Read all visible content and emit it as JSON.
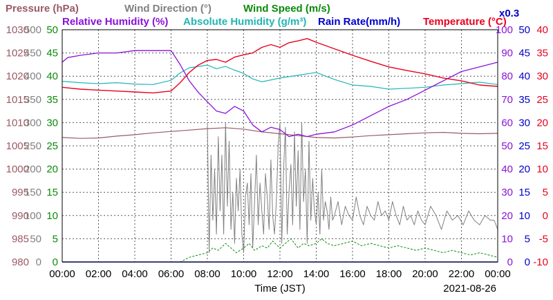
{
  "colors": {
    "pressure": "#9a5a64",
    "wind_direction": "#808080",
    "wind_speed": "#0a8a0a",
    "relative_humidity": "#8a12d8",
    "absolute_humidity": "#22b5b5",
    "rain_rate": "#0000cc",
    "temperature": "#e8001e"
  },
  "chart_data": {
    "type": "line",
    "legend": {
      "row1": [
        {
          "key": "pressure",
          "label": "Pressure (hPa)"
        },
        {
          "key": "wind_direction",
          "label": "Wind Direction (°)"
        },
        {
          "key": "wind_speed",
          "label": "Wind Speed (m/s)"
        }
      ],
      "row2": [
        {
          "key": "relative_humidity",
          "label": "Relative Humidity (%)"
        },
        {
          "key": "absolute_humidity",
          "label": "Absolute Humidity (g/m³)"
        },
        {
          "key": "rain_rate",
          "label": "Rain Rate(mm/h)"
        },
        {
          "key": "temperature",
          "label": "Temperature (°C)"
        }
      ],
      "rain_multiplier": "x0.3"
    },
    "xlabel": "Time (JST)",
    "date": "2021-08-26",
    "x_ticks": [
      "00:00",
      "02:00",
      "04:00",
      "06:00",
      "08:00",
      "10:00",
      "12:00",
      "14:00",
      "16:00",
      "18:00",
      "20:00",
      "22:00",
      "00:00"
    ],
    "x_range_hours": [
      0,
      24
    ],
    "grid": true,
    "axes": {
      "pressure": {
        "range": [
          980,
          1030
        ],
        "ticks": [
          "980",
          "985",
          "990",
          "995",
          "1000",
          "1005",
          "1010",
          "1015",
          "1020",
          "1025",
          "1030"
        ]
      },
      "wind_direction": {
        "range": [
          0,
          500
        ],
        "ticks": [
          "0",
          "50",
          "100",
          "150",
          "200",
          "250",
          "300",
          "350",
          "400",
          "450",
          "500"
        ]
      },
      "wind_speed": {
        "range": [
          0,
          50
        ],
        "ticks": [
          "0",
          "5",
          "10",
          "15",
          "20",
          "25",
          "30",
          "35",
          "40",
          "45",
          "50"
        ]
      },
      "relative_humidity": {
        "range": [
          0,
          100
        ],
        "ticks": [
          "0",
          "10",
          "20",
          "30",
          "40",
          "50",
          "60",
          "70",
          "80",
          "90",
          "100"
        ]
      },
      "rain_rate": {
        "range": [
          0,
          50
        ],
        "ticks": [
          "0",
          "5",
          "10",
          "15",
          "20",
          "25",
          "30",
          "35",
          "40",
          "45",
          "50"
        ]
      },
      "temperature": {
        "range": [
          -10,
          40
        ],
        "ticks": [
          "-10",
          "-5",
          "0",
          "5",
          "10",
          "15",
          "20",
          "25",
          "30",
          "35",
          "40"
        ]
      }
    },
    "series": [
      {
        "key": "pressure",
        "axis": "pressure",
        "x": [
          0,
          1,
          2,
          3,
          4,
          5,
          6,
          7,
          8,
          9,
          10,
          11,
          12,
          13,
          14,
          15,
          16,
          17,
          18,
          19,
          20,
          21,
          22,
          23,
          24
        ],
        "y": [
          1006.8,
          1006.6,
          1006.7,
          1007.1,
          1007.4,
          1007.8,
          1008.1,
          1008.4,
          1008.7,
          1008.9,
          1008.6,
          1008.0,
          1007.6,
          1007.2,
          1006.8,
          1006.7,
          1006.9,
          1007.2,
          1007.4,
          1007.6,
          1007.8,
          1007.9,
          1007.7,
          1007.6,
          1007.7
        ]
      },
      {
        "key": "absolute_humidity",
        "axis": "wind_speed",
        "x": [
          0,
          1,
          2,
          3,
          4,
          5,
          6,
          6.5,
          7,
          7.5,
          8,
          8.5,
          9,
          9.5,
          10,
          10.5,
          11,
          12,
          13,
          14,
          15,
          16,
          17,
          18,
          19,
          20,
          21,
          22,
          23,
          24
        ],
        "y": [
          38.9,
          38.6,
          38.4,
          38.6,
          38.3,
          38.2,
          39.1,
          40.7,
          41.8,
          42.1,
          42.4,
          41.6,
          42.1,
          41.3,
          40.6,
          39.4,
          38.8,
          39.6,
          40.2,
          40.8,
          39.3,
          38.1,
          37.8,
          37.2,
          37.4,
          37.6,
          38.1,
          38.4,
          38.7,
          38.2
        ]
      },
      {
        "key": "relative_humidity",
        "axis": "relative_humidity",
        "x": [
          0,
          0.3,
          1,
          2,
          3,
          4,
          5,
          6,
          6.5,
          7,
          7.5,
          8,
          8.5,
          9,
          9.5,
          10,
          10.5,
          11,
          11.5,
          12,
          12.5,
          13,
          13.5,
          14,
          15,
          16,
          17,
          18,
          19,
          20,
          21,
          22,
          23,
          24
        ],
        "y": [
          86,
          88,
          89,
          90,
          90,
          91,
          91,
          91,
          85,
          78,
          73,
          69,
          65,
          64,
          67,
          65,
          59,
          56,
          58,
          57,
          54,
          55,
          54,
          55,
          56,
          59,
          63,
          67,
          70,
          74,
          78,
          82,
          84,
          86
        ]
      },
      {
        "key": "temperature",
        "axis": "temperature",
        "x": [
          0,
          1,
          2,
          3,
          4,
          5,
          6,
          6.5,
          7,
          7.5,
          8,
          8.5,
          9,
          9.5,
          10,
          10.5,
          11,
          11.5,
          12,
          12.5,
          13,
          13.5,
          14,
          15,
          16,
          17,
          18,
          19,
          20,
          21,
          22,
          23,
          24
        ],
        "y": [
          27.6,
          27.2,
          27.0,
          26.8,
          26.6,
          26.4,
          26.8,
          28.6,
          30.8,
          32.4,
          33.4,
          33.6,
          33.0,
          34.1,
          34.6,
          35.0,
          36.2,
          36.8,
          36.2,
          37.2,
          37.6,
          38.1,
          37.3,
          35.9,
          34.5,
          33.2,
          32.0,
          31.2,
          30.5,
          29.6,
          29.0,
          28.1,
          27.8
        ]
      },
      {
        "key": "rain_rate",
        "axis": "rain_rate",
        "x": [
          0,
          24
        ],
        "y": [
          0,
          0
        ]
      },
      {
        "key": "wind_direction",
        "axis": "wind_direction",
        "x": [
          0,
          6.8,
          7.0,
          7.2,
          7.4,
          7.6,
          7.8,
          8.0,
          8.1,
          8.2,
          8.3,
          8.4,
          8.5,
          8.6,
          8.7,
          8.8,
          8.9,
          9.0,
          9.1,
          9.2,
          9.3,
          9.4,
          9.5,
          9.6,
          9.7,
          9.8,
          9.9,
          10.0,
          10.1,
          10.2,
          10.3,
          10.4,
          10.5,
          10.6,
          10.7,
          10.8,
          10.9,
          11.0,
          11.1,
          11.2,
          11.3,
          11.4,
          11.5,
          11.6,
          11.7,
          11.8,
          11.9,
          12.0,
          12.1,
          12.2,
          12.3,
          12.4,
          12.5,
          12.6,
          12.7,
          12.8,
          12.9,
          13.0,
          13.1,
          13.2,
          13.3,
          13.4,
          13.5,
          13.6,
          13.7,
          13.8,
          13.9,
          14.0,
          14.1,
          14.2,
          14.3,
          14.4,
          14.5,
          14.6,
          14.7,
          14.8,
          14.9,
          15.0,
          15.2,
          15.4,
          15.6,
          15.8,
          16.0,
          16.2,
          16.4,
          16.6,
          16.8,
          17.0,
          17.2,
          17.4,
          17.6,
          17.8,
          18.0,
          18.2,
          18.4,
          18.6,
          18.8,
          19.0,
          19.2,
          19.4,
          19.6,
          19.8,
          20.0,
          20.3,
          20.6,
          20.9,
          21.2,
          21.5,
          21.8,
          22.1,
          22.4,
          22.7,
          23.0,
          23.3,
          23.6,
          23.8,
          24.0
        ],
        "y": [
          null,
          null,
          20,
          null,
          null,
          null,
          null,
          300,
          20,
          230,
          90,
          200,
          60,
          270,
          110,
          230,
          60,
          300,
          120,
          260,
          70,
          150,
          40,
          180,
          110,
          200,
          60,
          20,
          140,
          170,
          80,
          190,
          30,
          130,
          230,
          80,
          170,
          110,
          60,
          190,
          140,
          70,
          220,
          100,
          60,
          130,
          250,
          300,
          40,
          200,
          290,
          60,
          150,
          210,
          80,
          280,
          120,
          240,
          70,
          300,
          130,
          200,
          40,
          260,
          90,
          180,
          110,
          80,
          150,
          60,
          200,
          90,
          130,
          110,
          70,
          140,
          90,
          100,
          130,
          80,
          120,
          100,
          90,
          140,
          100,
          80,
          120,
          100,
          90,
          130,
          100,
          110,
          90,
          130,
          100,
          80,
          120,
          90,
          100,
          80,
          110,
          90,
          80,
          120,
          100,
          70,
          110,
          90,
          100,
          80,
          110,
          90,
          80,
          100,
          90,
          90,
          70
        ]
      },
      {
        "key": "wind_speed",
        "axis": "wind_speed",
        "x": [
          0,
          6.5,
          7,
          7.5,
          8,
          8.3,
          8.6,
          9,
          9.3,
          9.6,
          10,
          10.3,
          10.6,
          11,
          11.3,
          11.6,
          12,
          12.3,
          12.6,
          13,
          13.3,
          13.6,
          14,
          14.3,
          14.6,
          15,
          15.5,
          16,
          16.5,
          17,
          17.5,
          18,
          18.5,
          19,
          19.5,
          20,
          20.5,
          21,
          21.5,
          22,
          22.5,
          23,
          23.5,
          24
        ],
        "y": [
          0,
          0,
          1,
          1.5,
          2,
          3,
          2.5,
          4,
          3,
          2,
          3,
          4,
          2.5,
          3.5,
          3,
          4.5,
          3,
          4,
          5,
          3,
          4,
          3.5,
          4,
          5,
          4,
          3.5,
          4,
          4.5,
          3.5,
          4,
          3.5,
          3,
          3.5,
          3,
          2.5,
          3,
          2.5,
          2,
          2.5,
          2,
          1.5,
          2,
          1.5,
          1
        ]
      }
    ]
  }
}
